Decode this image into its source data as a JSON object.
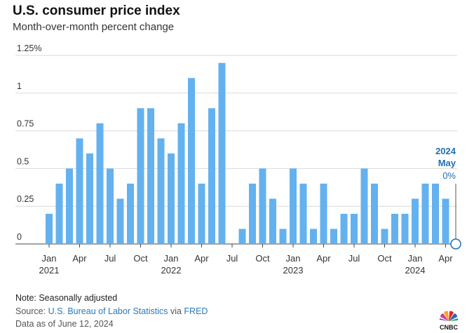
{
  "header": {
    "title": "U.S. consumer price index",
    "subtitle": "Month-over-month percent change"
  },
  "footer": {
    "note": "Note: Seasonally adjusted",
    "source_prefix": "Source: ",
    "source_link1": "U.S. Bureau of Labor Statistics",
    "source_mid": " via ",
    "source_link2": "FRED",
    "as_of": "Data as of June 12, 2024"
  },
  "logo": {
    "text": "CNBC"
  },
  "colors": {
    "bar": "#64b1ef",
    "accent": "#1f6fb2",
    "grid": "#d9d9d9"
  },
  "chart_data": {
    "type": "bar",
    "title": "U.S. consumer price index",
    "subtitle": "Month-over-month percent change",
    "ylabel": "",
    "xlabel": "",
    "ylim": [
      0,
      1.25
    ],
    "yticks": [
      0,
      0.25,
      0.5,
      0.75,
      1,
      1.25
    ],
    "ytick_labels": [
      "0",
      "0.25",
      "0.5",
      "0.75",
      "1",
      "1.25%"
    ],
    "grid": true,
    "categories": [
      "2021-01",
      "2021-02",
      "2021-03",
      "2021-04",
      "2021-05",
      "2021-06",
      "2021-07",
      "2021-08",
      "2021-09",
      "2021-10",
      "2021-11",
      "2021-12",
      "2022-01",
      "2022-02",
      "2022-03",
      "2022-04",
      "2022-05",
      "2022-06",
      "2022-07",
      "2022-08",
      "2022-09",
      "2022-10",
      "2022-11",
      "2022-12",
      "2023-01",
      "2023-02",
      "2023-03",
      "2023-04",
      "2023-05",
      "2023-06",
      "2023-07",
      "2023-08",
      "2023-09",
      "2023-10",
      "2023-11",
      "2023-12",
      "2024-01",
      "2024-02",
      "2024-03",
      "2024-04",
      "2024-05"
    ],
    "values": [
      0.2,
      0.4,
      0.5,
      0.7,
      0.6,
      0.8,
      0.5,
      0.3,
      0.4,
      0.9,
      0.9,
      0.7,
      0.6,
      0.8,
      1.1,
      0.4,
      0.9,
      1.2,
      0.0,
      0.1,
      0.4,
      0.5,
      0.3,
      0.1,
      0.5,
      0.4,
      0.1,
      0.4,
      0.1,
      0.2,
      0.2,
      0.5,
      0.4,
      0.1,
      0.2,
      0.2,
      0.3,
      0.4,
      0.4,
      0.3,
      0.0
    ],
    "xtick_labels": [
      {
        "month": "Jan",
        "index": 0,
        "year": "2021"
      },
      {
        "month": "Apr",
        "index": 3
      },
      {
        "month": "Jul",
        "index": 6
      },
      {
        "month": "Oct",
        "index": 9
      },
      {
        "month": "Jan",
        "index": 12,
        "year": "2022"
      },
      {
        "month": "Apr",
        "index": 15
      },
      {
        "month": "Jul",
        "index": 18
      },
      {
        "month": "Oct",
        "index": 21
      },
      {
        "month": "Jan",
        "index": 24,
        "year": "2023"
      },
      {
        "month": "Apr",
        "index": 27
      },
      {
        "month": "Jul",
        "index": 30
      },
      {
        "month": "Oct",
        "index": 33
      },
      {
        "month": "Jan",
        "index": 36,
        "year": "2024"
      },
      {
        "month": "Apr",
        "index": 39
      }
    ],
    "annotation": {
      "index": 40,
      "year": "2024",
      "month": "May",
      "value_label": "0%"
    }
  }
}
